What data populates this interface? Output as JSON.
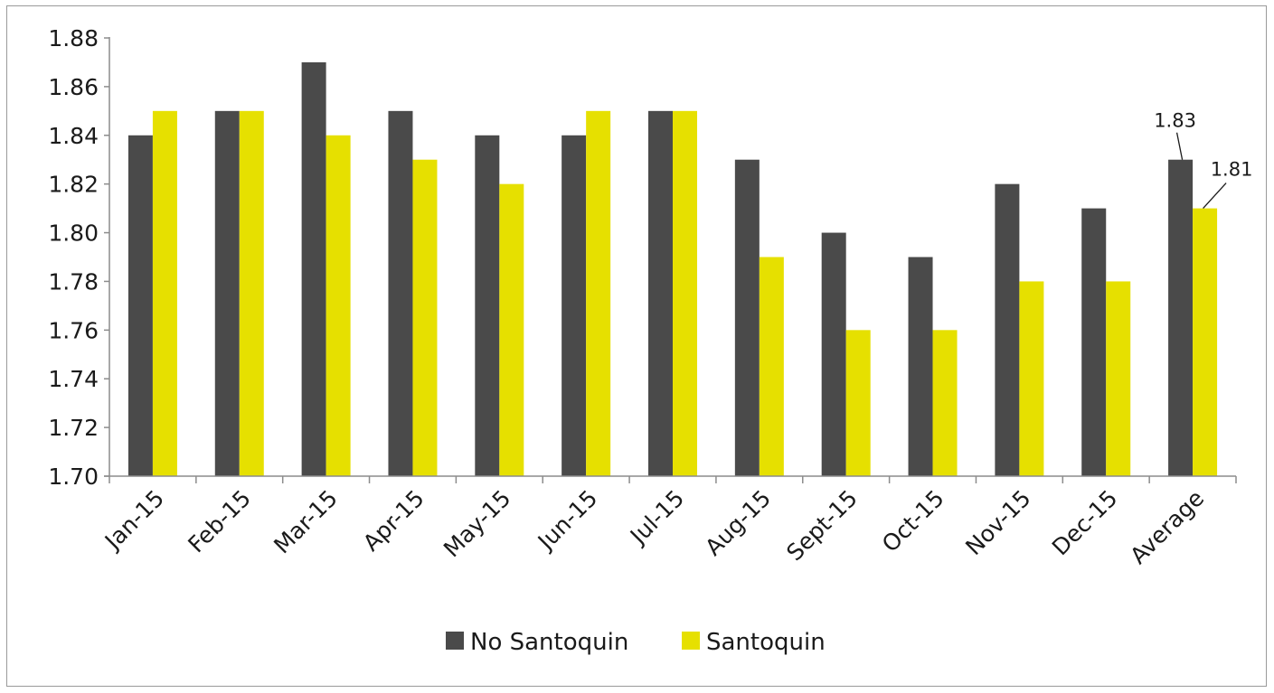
{
  "chart_data": {
    "type": "bar",
    "title": "",
    "xlabel": "",
    "ylabel": "",
    "categories": [
      "Jan-15",
      "Feb-15",
      "Mar-15",
      "Apr-15",
      "May-15",
      "Jun-15",
      "Jul-15",
      "Aug-15",
      "Sept-15",
      "Oct-15",
      "Nov-15",
      "Dec-15",
      "Average"
    ],
    "series": [
      {
        "name": "No Santoquin",
        "color": "#4a4a4a",
        "values": [
          1.84,
          1.85,
          1.87,
          1.85,
          1.84,
          1.84,
          1.85,
          1.83,
          1.8,
          1.79,
          1.82,
          1.81,
          1.83
        ]
      },
      {
        "name": "Santoquin",
        "color": "#e6e000",
        "values": [
          1.85,
          1.85,
          1.84,
          1.83,
          1.82,
          1.85,
          1.85,
          1.79,
          1.76,
          1.76,
          1.78,
          1.78,
          1.81
        ]
      }
    ],
    "ylim": [
      1.7,
      1.88
    ],
    "yticks": [
      "1.70",
      "1.72",
      "1.74",
      "1.76",
      "1.78",
      "1.80",
      "1.82",
      "1.84",
      "1.86",
      "1.88"
    ],
    "data_labels": [
      {
        "series": 0,
        "category": 12,
        "text": "1.83"
      },
      {
        "series": 1,
        "category": 12,
        "text": "1.81"
      }
    ],
    "legend": "bottom",
    "grid": false
  }
}
